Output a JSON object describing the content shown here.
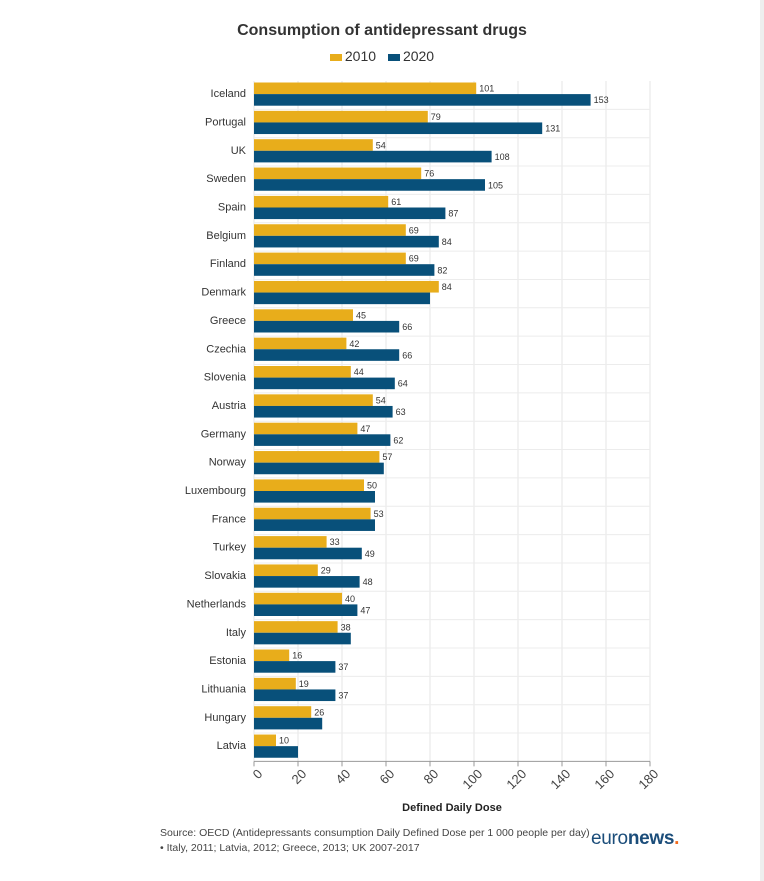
{
  "chart_data": {
    "type": "bar",
    "orientation": "horizontal",
    "title": "Consumption of antidepressant drugs",
    "xlabel": "Defined Daily Dose",
    "ylabel": "",
    "xlim": [
      0,
      180
    ],
    "ticks": [
      0,
      20,
      40,
      60,
      80,
      100,
      120,
      140,
      160,
      180
    ],
    "grid": true,
    "legend": "top-center",
    "categories": [
      "Iceland",
      "Portugal",
      "UK",
      "Sweden",
      "Spain",
      "Belgium",
      "Finland",
      "Denmark",
      "Greece",
      "Czechia",
      "Slovenia",
      "Austria",
      "Germany",
      "Norway",
      "Luxembourg",
      "France",
      "Turkey",
      "Slovakia",
      "Netherlands",
      "Italy",
      "Estonia",
      "Lithuania",
      "Hungary",
      "Latvia"
    ],
    "series": [
      {
        "name": "2010",
        "color": "#e8ad1b",
        "values": [
          101,
          79,
          54,
          76,
          61,
          69,
          69,
          84,
          45,
          42,
          44,
          54,
          47,
          57,
          50,
          53,
          33,
          29,
          40,
          38,
          16,
          19,
          26,
          10
        ],
        "labels": [
          "101",
          "79",
          "54",
          "76",
          "61",
          "69",
          "69",
          "84",
          "45",
          "42",
          "44",
          "54",
          "47",
          "57",
          "50",
          "53",
          "33",
          "29",
          "40",
          "38",
          "16",
          "19",
          "26",
          "10"
        ]
      },
      {
        "name": "2020",
        "color": "#08507a",
        "values": [
          153,
          131,
          108,
          105,
          87,
          84,
          82,
          80,
          66,
          66,
          64,
          63,
          62,
          59,
          55,
          55,
          49,
          48,
          47,
          44,
          37,
          37,
          31,
          20
        ],
        "labels": [
          "153",
          "131",
          "108",
          "105",
          "87",
          "84",
          "82",
          "",
          "66",
          "66",
          "64",
          "63",
          "62",
          "",
          "",
          "",
          "49",
          "48",
          "47",
          "",
          "37",
          "37",
          "",
          ""
        ]
      }
    ]
  },
  "source": "Source: OECD (Antidepressants consumption Daily Defined Dose per 1 000 people per day) • Italy, 2011; Latvia, 2012; Greece, 2013; UK 2007-2017",
  "logo": {
    "part1": "euro",
    "part2": "news",
    "dot": "."
  }
}
